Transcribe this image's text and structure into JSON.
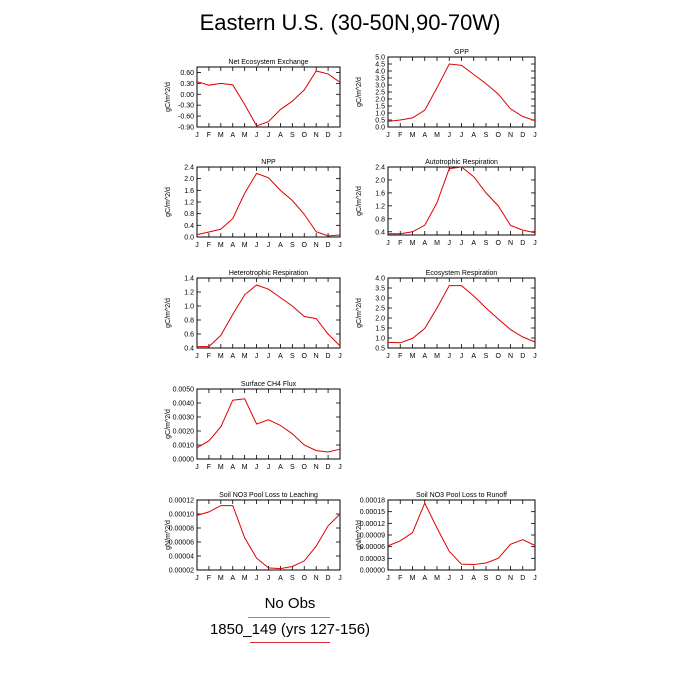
{
  "title": "Eastern U.S. (30-50N,90-70W)",
  "legend": {
    "obs_label": "No Obs",
    "case_label": "1850_149 (yrs 127-156)",
    "case_color": "#e00000",
    "obs_line_color": "#6f8fd0"
  },
  "chart_data": [
    {
      "type": "line",
      "title": "Net Ecosystem Exchange",
      "ylabel": "gC/m^2/d",
      "categories": [
        "J",
        "F",
        "M",
        "A",
        "M",
        "J",
        "J",
        "A",
        "S",
        "O",
        "N",
        "D",
        "J"
      ],
      "values": [
        0.35,
        0.25,
        0.3,
        0.26,
        -0.28,
        -0.87,
        -0.75,
        -0.42,
        -0.19,
        0.12,
        0.64,
        0.56,
        0.33
      ],
      "ylim": [
        -0.9,
        0.75
      ],
      "yticks": [
        "-0.90",
        "-0.60",
        "-0.30",
        "0.00",
        "0.30",
        "0.60"
      ],
      "ytick_values": [
        -0.9,
        -0.6,
        -0.3,
        0.0,
        0.3,
        0.6
      ]
    },
    {
      "type": "line",
      "title": "GPP",
      "ylabel": "gC/m^2/d",
      "categories": [
        "J",
        "F",
        "M",
        "A",
        "M",
        "J",
        "J",
        "A",
        "S",
        "O",
        "N",
        "D",
        "J"
      ],
      "values": [
        0.4,
        0.5,
        0.65,
        1.2,
        2.8,
        4.5,
        4.4,
        3.75,
        3.1,
        2.35,
        1.3,
        0.75,
        0.45
      ],
      "ylim": [
        0.0,
        5.0
      ],
      "yticks": [
        "0.0",
        "0.5",
        "1.0",
        "1.5",
        "2.0",
        "2.5",
        "3.0",
        "3.5",
        "4.0",
        "4.5",
        "5.0"
      ],
      "ytick_values": [
        0.0,
        0.5,
        1.0,
        1.5,
        2.0,
        2.5,
        3.0,
        3.5,
        4.0,
        4.5,
        5.0
      ]
    },
    {
      "type": "line",
      "title": "NPP",
      "ylabel": "gC/m^2/d",
      "categories": [
        "J",
        "F",
        "M",
        "A",
        "M",
        "J",
        "J",
        "A",
        "S",
        "O",
        "N",
        "D",
        "J"
      ],
      "values": [
        0.08,
        0.17,
        0.27,
        0.63,
        1.5,
        2.18,
        2.03,
        1.6,
        1.25,
        0.78,
        0.18,
        0.04,
        0.07
      ],
      "ylim": [
        0.0,
        2.4
      ],
      "yticks": [
        "0.0",
        "0.4",
        "0.8",
        "1.2",
        "1.6",
        "2.0",
        "2.4"
      ],
      "ytick_values": [
        0.0,
        0.4,
        0.8,
        1.2,
        1.6,
        2.0,
        2.4
      ]
    },
    {
      "type": "line",
      "title": "Autotrophic Respiration",
      "ylabel": "gC/m^2/d",
      "categories": [
        "J",
        "F",
        "M",
        "A",
        "M",
        "J",
        "J",
        "A",
        "S",
        "O",
        "N",
        "D",
        "J"
      ],
      "values": [
        0.34,
        0.34,
        0.4,
        0.6,
        1.3,
        2.35,
        2.4,
        2.1,
        1.6,
        1.2,
        0.6,
        0.45,
        0.37
      ],
      "ylim": [
        0.3,
        2.4
      ],
      "yticks": [
        "0.4",
        "0.8",
        "1.2",
        "1.6",
        "2.0",
        "2.4"
      ],
      "ytick_values": [
        0.4,
        0.8,
        1.2,
        1.6,
        2.0,
        2.4
      ]
    },
    {
      "type": "line",
      "title": "Heterotrophic Respiration",
      "ylabel": "gC/m^2/d",
      "categories": [
        "J",
        "F",
        "M",
        "A",
        "M",
        "J",
        "J",
        "A",
        "S",
        "O",
        "N",
        "D",
        "J"
      ],
      "values": [
        0.42,
        0.42,
        0.58,
        0.88,
        1.16,
        1.3,
        1.24,
        1.12,
        1.0,
        0.85,
        0.82,
        0.6,
        0.43
      ],
      "ylim": [
        0.4,
        1.4
      ],
      "yticks": [
        "0.4",
        "0.6",
        "0.8",
        "1.0",
        "1.2",
        "1.4"
      ],
      "ytick_values": [
        0.4,
        0.6,
        0.8,
        1.0,
        1.2,
        1.4
      ]
    },
    {
      "type": "line",
      "title": "Ecosystem Respiration",
      "ylabel": "gC/m^2/d",
      "categories": [
        "J",
        "F",
        "M",
        "A",
        "M",
        "J",
        "J",
        "A",
        "S",
        "O",
        "N",
        "D",
        "J"
      ],
      "values": [
        0.78,
        0.76,
        0.98,
        1.48,
        2.5,
        3.62,
        3.62,
        3.1,
        2.5,
        1.95,
        1.42,
        1.05,
        0.8
      ],
      "ylim": [
        0.5,
        4.0
      ],
      "yticks": [
        "0.5",
        "1.0",
        "1.5",
        "2.0",
        "2.5",
        "3.0",
        "3.5",
        "4.0"
      ],
      "ytick_values": [
        0.5,
        1.0,
        1.5,
        2.0,
        2.5,
        3.0,
        3.5,
        4.0
      ]
    },
    {
      "type": "line",
      "title": "Surface CH4 Flux",
      "ylabel": "gC/m^2/d",
      "categories": [
        "J",
        "F",
        "M",
        "A",
        "M",
        "J",
        "J",
        "A",
        "S",
        "O",
        "N",
        "D",
        "J"
      ],
      "values": [
        0.0008,
        0.0013,
        0.0023,
        0.0042,
        0.0043,
        0.0025,
        0.0028,
        0.0024,
        0.0018,
        0.001,
        0.0006,
        0.0005,
        0.0007
      ],
      "ylim": [
        0.0,
        0.005
      ],
      "yticks": [
        "0.0000",
        "0.0010",
        "0.0020",
        "0.0030",
        "0.0040",
        "0.0050"
      ],
      "ytick_values": [
        0.0,
        0.001,
        0.002,
        0.003,
        0.004,
        0.005
      ]
    },
    {
      "type": "line",
      "title": "Soil NO3 Pool Loss to Leaching",
      "ylabel": "gN/m^2/d",
      "categories": [
        "J",
        "F",
        "M",
        "A",
        "M",
        "J",
        "J",
        "A",
        "S",
        "O",
        "N",
        "D",
        "J"
      ],
      "values": [
        9.8e-05,
        0.000103,
        0.000112,
        0.000112,
        6.6e-05,
        3.7e-05,
        2.3e-05,
        2.2e-05,
        2.5e-05,
        3.3e-05,
        5.4e-05,
        8.3e-05,
        0.0001
      ],
      "ylim": [
        2e-05,
        0.00012
      ],
      "yticks": [
        "0.00002",
        "0.00004",
        "0.00006",
        "0.00008",
        "0.00010",
        "0.00012"
      ],
      "ytick_values": [
        2e-05,
        4e-05,
        6e-05,
        8e-05,
        0.0001,
        0.00012
      ]
    },
    {
      "type": "line",
      "title": "Soil NO3 Pool Loss to Runoff",
      "ylabel": "gN/m^2/d",
      "categories": [
        "J",
        "F",
        "M",
        "A",
        "M",
        "J",
        "J",
        "A",
        "S",
        "O",
        "N",
        "D",
        "J"
      ],
      "values": [
        6.2e-05,
        7.5e-05,
        9.6e-05,
        0.000172,
        0.000108,
        4.8e-05,
        1.5e-05,
        1.4e-05,
        1.8e-05,
        3e-05,
        6.6e-05,
        7.8e-05,
        6.3e-05
      ],
      "ylim": [
        0.0,
        0.00018
      ],
      "yticks": [
        "0.00000",
        "0.00003",
        "0.00006",
        "0.00009",
        "0.00012",
        "0.00015",
        "0.00018"
      ],
      "ytick_values": [
        0.0,
        3e-05,
        6e-05,
        9e-05,
        0.00012,
        0.00015,
        0.00018
      ]
    }
  ]
}
